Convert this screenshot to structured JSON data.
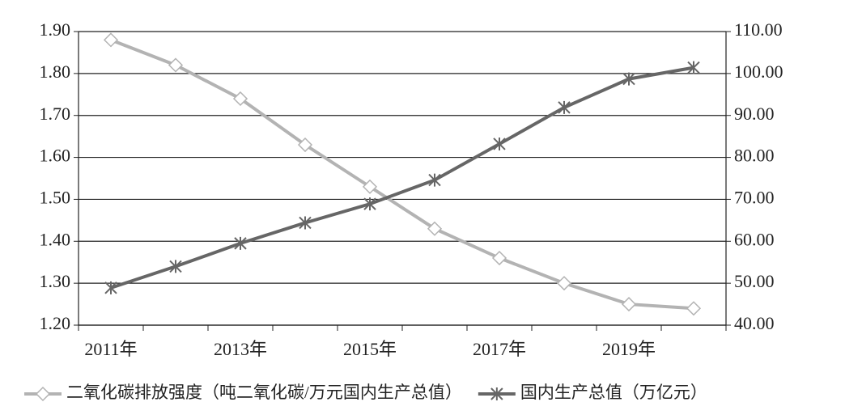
{
  "chart_data": {
    "type": "line",
    "categories": [
      "2011年",
      null,
      "2013年",
      null,
      "2015年",
      null,
      "2017年",
      null,
      "2019年",
      null
    ],
    "series": [
      {
        "name": "二氧化碳排放强度（吨二氧化碳/万元国内生产总值）",
        "color": "#b3b3b3",
        "marker": "diamond",
        "axis": "y",
        "values": [
          1.88,
          1.82,
          1.74,
          1.63,
          1.53,
          1.43,
          1.36,
          1.3,
          1.25,
          1.24
        ]
      },
      {
        "name": "国内生产总值（万亿元）",
        "color": "#666666",
        "marker": "asterisk",
        "axis": "y2",
        "values": [
          48.9,
          54.0,
          59.5,
          64.4,
          68.9,
          74.6,
          83.2,
          91.9,
          98.7,
          101.4
        ]
      }
    ],
    "ylim": [
      1.2,
      1.9
    ],
    "yticks": [
      {
        "value": 1.2,
        "label": "1.20"
      },
      {
        "value": 1.3,
        "label": "1.30"
      },
      {
        "value": 1.4,
        "label": "1.40"
      },
      {
        "value": 1.5,
        "label": "1.50"
      },
      {
        "value": 1.6,
        "label": "1.60"
      },
      {
        "value": 1.7,
        "label": "1.70"
      },
      {
        "value": 1.8,
        "label": "1.80"
      },
      {
        "value": 1.9,
        "label": "1.90"
      }
    ],
    "y2lim": [
      40,
      110
    ],
    "y2ticks": [
      {
        "value": 40,
        "label": "40.00"
      },
      {
        "value": 50,
        "label": "50.00"
      },
      {
        "value": 60,
        "label": "60.00"
      },
      {
        "value": 70,
        "label": "70.00"
      },
      {
        "value": 80,
        "label": "80.00"
      },
      {
        "value": 90,
        "label": "90.00"
      },
      {
        "value": 100,
        "label": "100.00"
      },
      {
        "value": 110,
        "label": "110.00"
      }
    ],
    "grid": true,
    "legend": "bottom"
  }
}
